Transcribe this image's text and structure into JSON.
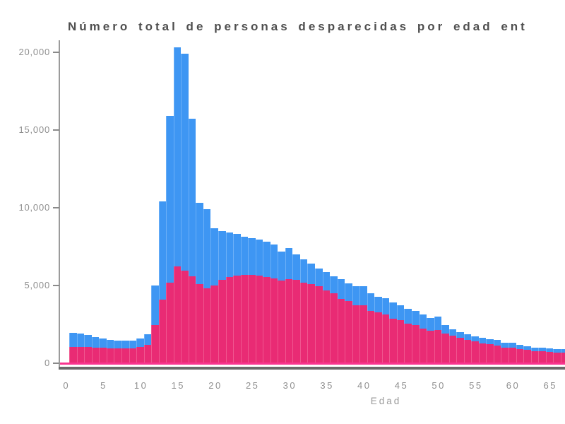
{
  "title": "Número total de personas desparecidas por edad ent",
  "colors": {
    "blue_bar": "#3e96f3",
    "blue_bar_seam": "#6cb0f7",
    "pink_bar": "#e92b74",
    "pink_bar_seam": "#f0568f",
    "baseline_accent": "#f8358f",
    "y_axis_line": "#9b9b9b",
    "x_axis_line": "#6a6a6a",
    "tick_label": "#8f8f8f",
    "title_text": "#4f4f4f"
  },
  "y_axis": {
    "tick_labels": [
      "0",
      "5,000",
      "10,000",
      "15,000",
      "20,000"
    ],
    "tick_values": [
      0,
      5000,
      10000,
      15000,
      20000
    ]
  },
  "x_axis": {
    "label": "Edad",
    "tick_values": [
      0,
      5,
      10,
      15,
      20,
      25,
      30,
      35,
      40,
      45,
      50,
      55,
      60,
      65
    ]
  },
  "chart_data": {
    "type": "bar",
    "title": "Número total de personas desparecidas por edad ent",
    "xlabel": "Edad",
    "ylabel": "",
    "ylim": [
      0,
      20700
    ],
    "xlim_visible": [
      0,
      67
    ],
    "grid": false,
    "legend_position": "none",
    "render_note": "dos series superpuestas: azul detras, rosa delante (aspecto apilado)",
    "x": [
      1,
      2,
      3,
      4,
      5,
      6,
      7,
      8,
      9,
      10,
      11,
      12,
      13,
      14,
      15,
      16,
      17,
      18,
      19,
      20,
      21,
      22,
      23,
      24,
      25,
      26,
      27,
      28,
      29,
      30,
      31,
      32,
      33,
      34,
      35,
      36,
      37,
      38,
      39,
      40,
      41,
      42,
      43,
      44,
      45,
      46,
      47,
      48,
      49,
      50,
      51,
      52,
      53,
      54,
      55,
      56,
      57,
      58,
      59,
      60,
      61,
      62,
      63,
      64,
      65,
      66,
      67
    ],
    "series": [
      {
        "name": "serie-azul",
        "color": "#3e96f3",
        "values": [
          1950,
          1900,
          1800,
          1700,
          1600,
          1520,
          1470,
          1440,
          1470,
          1580,
          1850,
          5000,
          10400,
          15900,
          20300,
          19900,
          15750,
          10300,
          9900,
          8700,
          8500,
          8400,
          8300,
          8150,
          8050,
          7950,
          7800,
          7620,
          7200,
          7430,
          7000,
          6700,
          6400,
          6100,
          5850,
          5600,
          5400,
          5150,
          4950,
          4950,
          4500,
          4280,
          4200,
          3900,
          3750,
          3520,
          3370,
          3150,
          2920,
          2980,
          2450,
          2200,
          2010,
          1860,
          1710,
          1630,
          1550,
          1480,
          1330,
          1330,
          1180,
          1090,
          1010,
          1010,
          940,
          890,
          890
        ]
      },
      {
        "name": "serie-rosa",
        "color": "#e92b74",
        "values": [
          1050,
          1050,
          1040,
          1020,
          980,
          950,
          940,
          940,
          960,
          1040,
          1170,
          2450,
          4100,
          5200,
          6250,
          5950,
          5600,
          5100,
          4800,
          5000,
          5350,
          5550,
          5650,
          5700,
          5700,
          5650,
          5550,
          5450,
          5330,
          5400,
          5360,
          5180,
          5100,
          4950,
          4700,
          4500,
          4150,
          3980,
          3750,
          3750,
          3380,
          3280,
          3150,
          2850,
          2760,
          2540,
          2460,
          2230,
          2090,
          2150,
          1920,
          1770,
          1630,
          1510,
          1390,
          1280,
          1210,
          1120,
          1010,
          1010,
          910,
          850,
          790,
          760,
          710,
          670,
          670
        ]
      }
    ]
  }
}
